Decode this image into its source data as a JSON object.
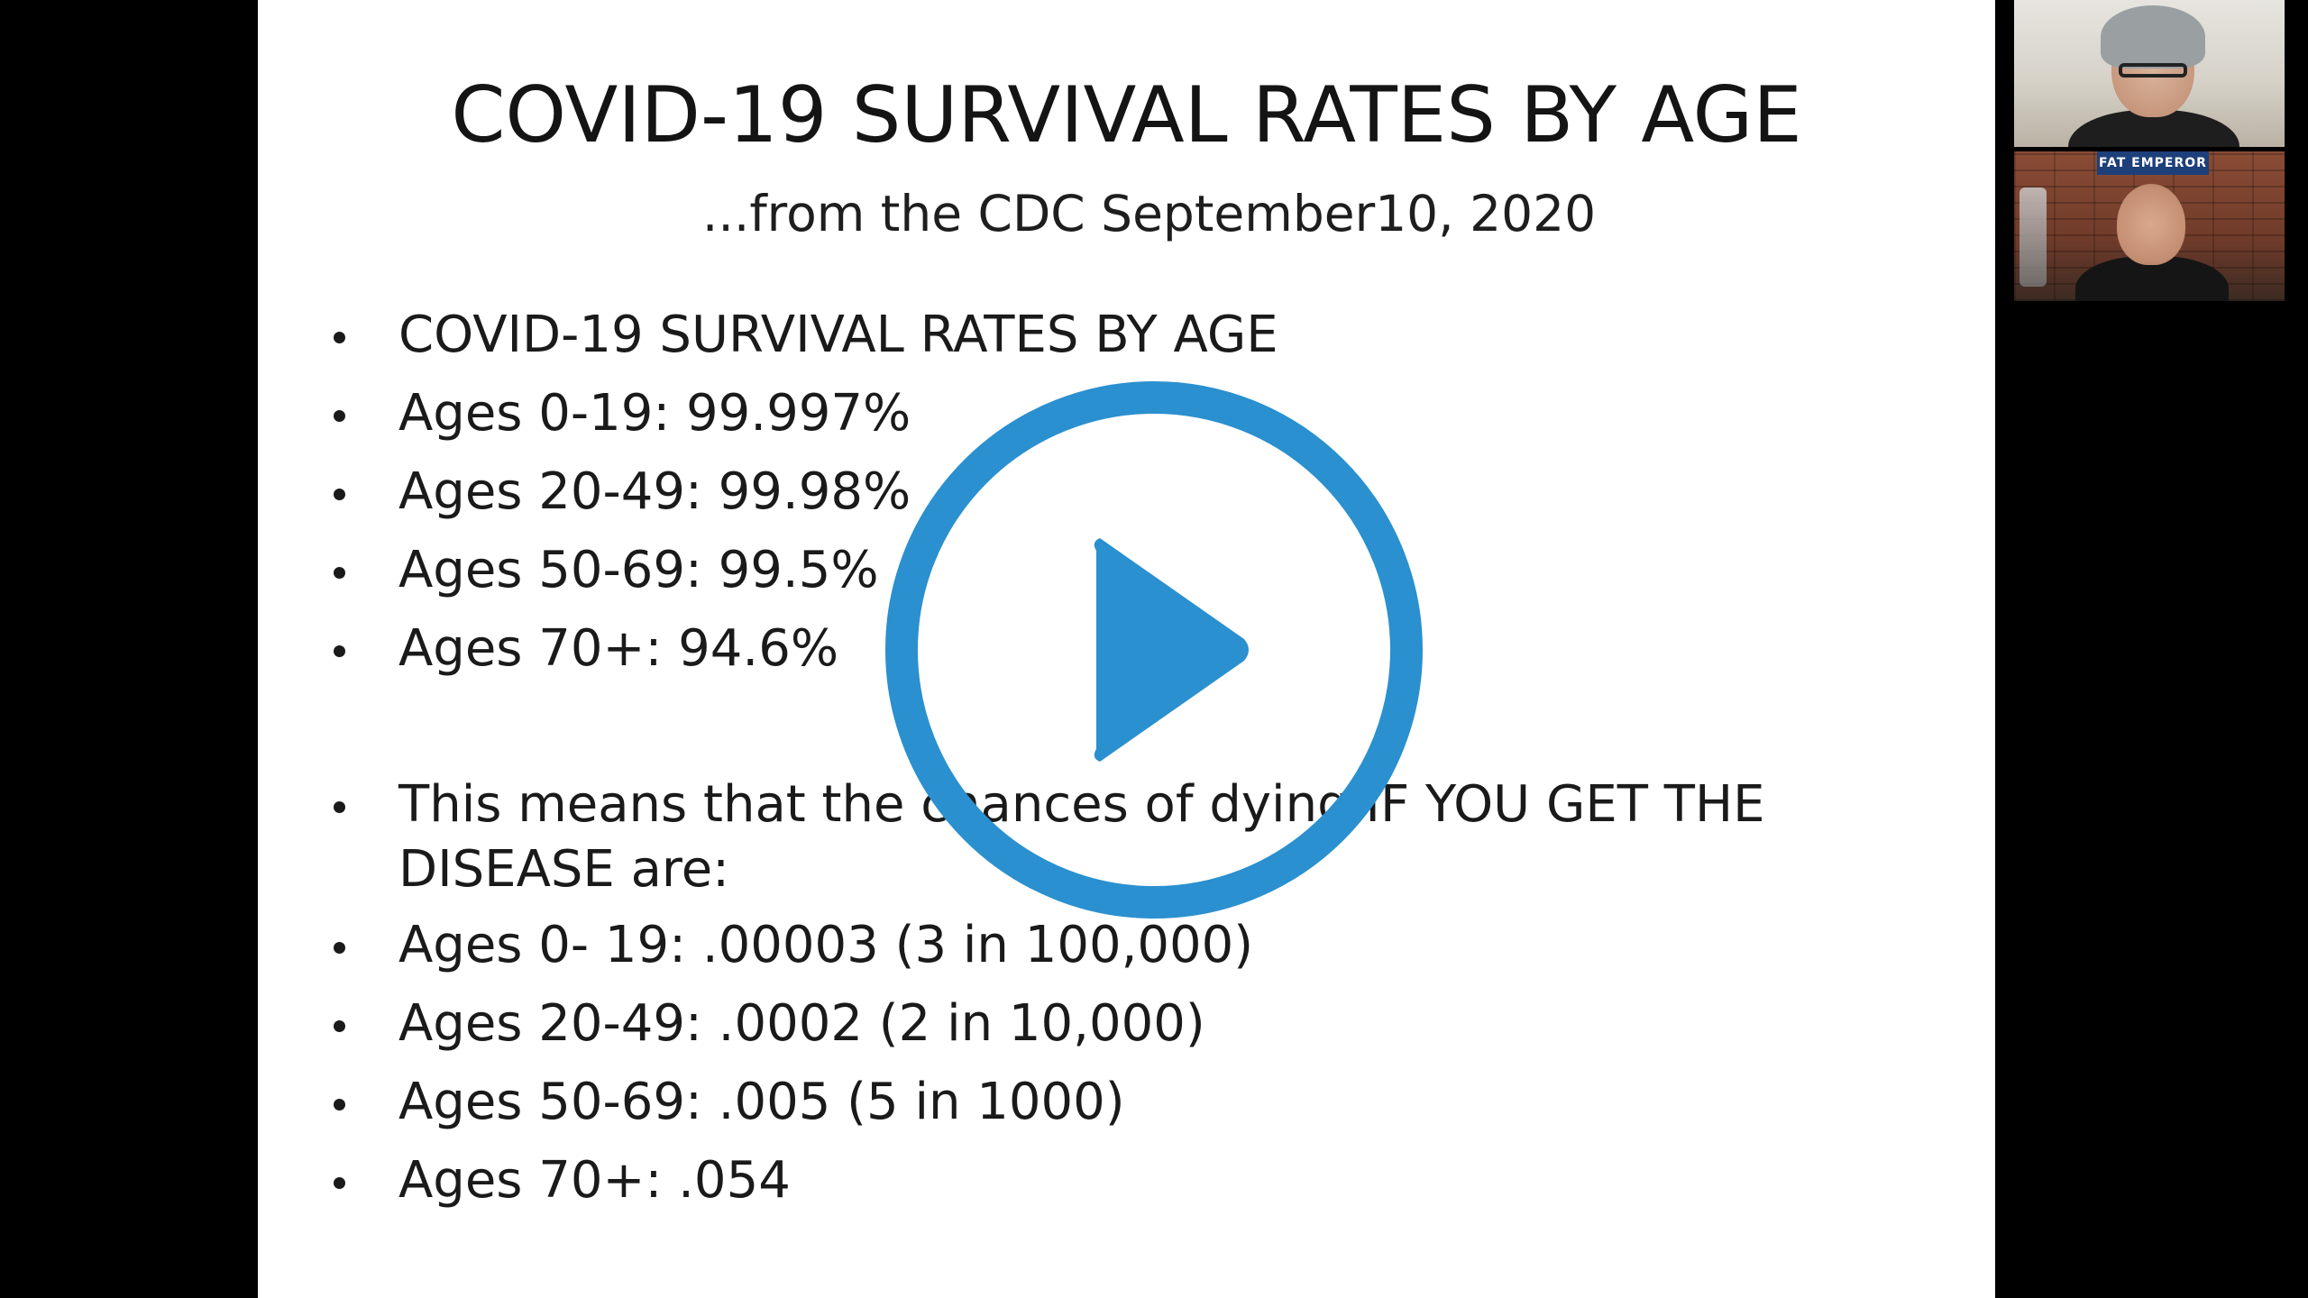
{
  "slide": {
    "title": "COVID-19 SURVIVAL RATES BY AGE",
    "subtitle": "...from the CDC September10, 2020",
    "bullets_group_1": [
      "COVID-19 SURVIVAL RATES BY AGE",
      "Ages 0-19: 99.997%",
      "Ages 20-49: 99.98%",
      "Ages 50-69: 99.5%",
      "Ages 70+: 94.6%"
    ],
    "bullets_group_2": [
      "This means that the chances of dying IF YOU GET THE DISEASE are:",
      "Ages 0- 19: .00003 (3 in 100,000)",
      "Ages 20-49: .0002 (2 in 10,000)",
      "Ages 50-69: .005 (5 in 1000)",
      "Ages 70+: .054"
    ]
  },
  "participants": {
    "tile_2_sign": "FAT EMPEROR"
  },
  "play_button": {
    "icon": "play-icon",
    "color": "#2a90cf"
  },
  "colors": {
    "background": "#000000",
    "slide": "#ffffff",
    "text": "#1a1a1a",
    "accent": "#2a90cf"
  }
}
